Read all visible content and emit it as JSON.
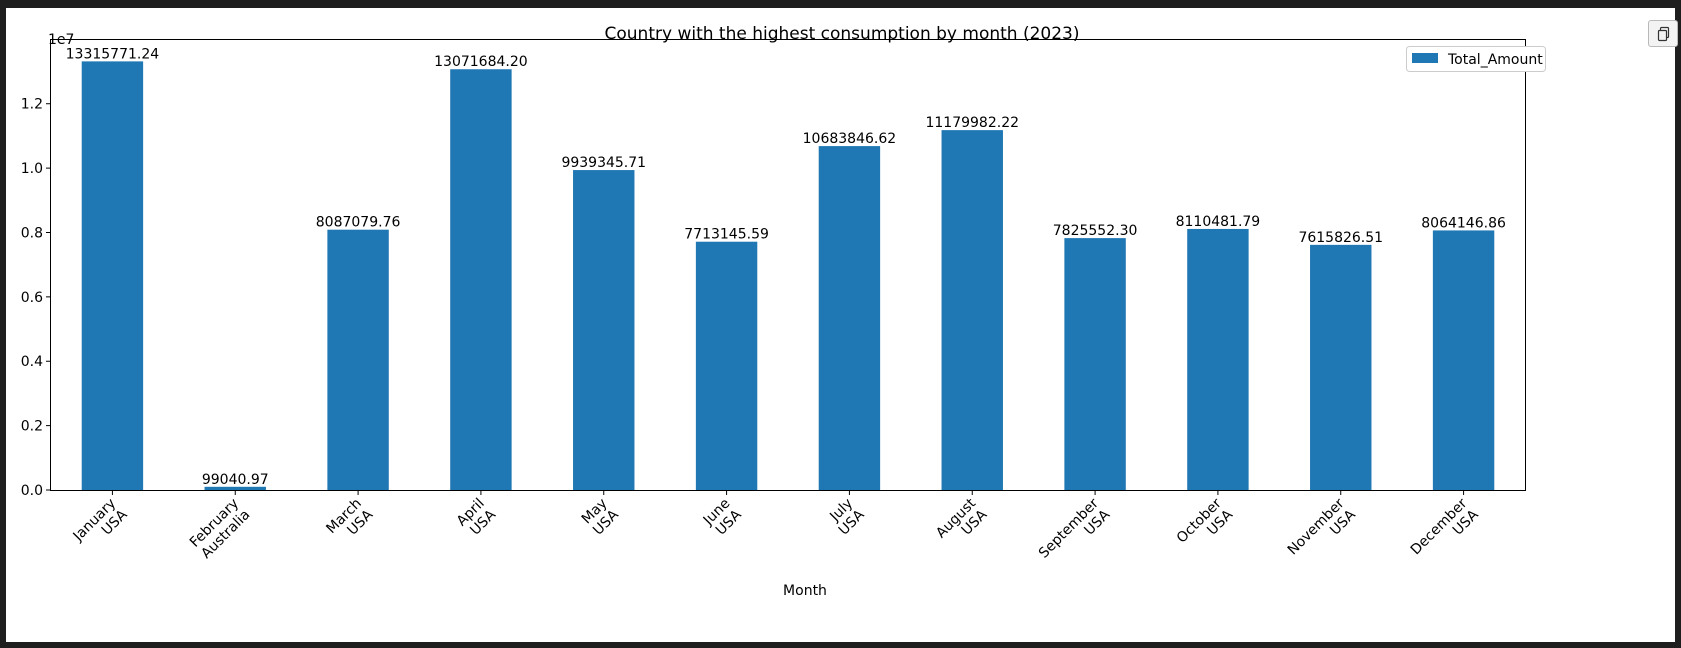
{
  "chart_data": {
    "type": "bar",
    "title": "Country with the highest consumption by month (2023)",
    "xlabel": "Month",
    "ylabel": "",
    "y_scale_label": "1e7",
    "ylim": [
      0,
      13980000
    ],
    "yticks": [
      0,
      2000000,
      4000000,
      6000000,
      8000000,
      10000000,
      12000000
    ],
    "ytick_labels": [
      "0.0",
      "0.2",
      "0.4",
      "0.6",
      "0.8",
      "1.0",
      "1.2"
    ],
    "categories": [
      [
        "January",
        "USA"
      ],
      [
        "February",
        "Australia"
      ],
      [
        "March",
        "USA"
      ],
      [
        "April",
        "USA"
      ],
      [
        "May",
        "USA"
      ],
      [
        "June",
        "USA"
      ],
      [
        "July",
        "USA"
      ],
      [
        "August",
        "USA"
      ],
      [
        "September",
        "USA"
      ],
      [
        "October",
        "USA"
      ],
      [
        "November",
        "USA"
      ],
      [
        "December",
        "USA"
      ]
    ],
    "series": [
      {
        "name": "Total_Amount",
        "color": "#1f77b4",
        "values": [
          13315771.24,
          99040.97,
          8087079.76,
          13071684.2,
          9939345.71,
          7713145.59,
          10683846.62,
          11179982.22,
          7825552.3,
          8110481.79,
          7615826.51,
          8064146.86
        ],
        "labels": [
          "13315771.24",
          "99040.97",
          "8087079.76",
          "13071684.20",
          "9939345.71",
          "7713145.59",
          "10683846.62",
          "11179982.22",
          "7825552.30",
          "8110481.79",
          "7615826.51",
          "8064146.86"
        ]
      }
    ],
    "legend": {
      "position": "top-right"
    },
    "grid": false
  }
}
